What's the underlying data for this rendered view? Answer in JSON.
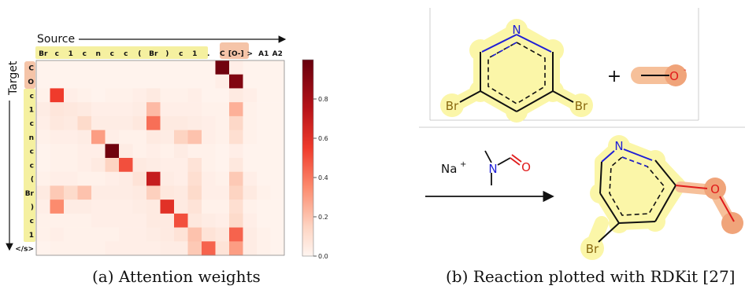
{
  "panel_a": {
    "source_label": "Source",
    "target_label": "Target",
    "source_tokens": [
      "Br",
      "c",
      "1",
      "c",
      "n",
      "c",
      "c",
      "(",
      "Br",
      ")",
      "c",
      "1",
      ".",
      "C",
      "[O-]",
      ">",
      "A1",
      "A2"
    ],
    "target_tokens": [
      "C",
      "O",
      "c",
      "1",
      "c",
      "n",
      "c",
      "c",
      "(",
      "Br",
      ")",
      "c",
      "1",
      "</s>"
    ],
    "caption": "(a) Attention weights",
    "colorbar_ticks": [
      "0.0",
      "0.2",
      "0.4",
      "0.6",
      "0.8"
    ],
    "colors": {
      "low": "#fff5f0",
      "high": "#67000d",
      "token_yellow": "#f5f0a0",
      "token_orange": "#f5c4a8"
    }
  },
  "chart_data": {
    "type": "heatmap",
    "xlabel": "Source",
    "ylabel": "Target",
    "x": [
      "Br",
      "c",
      "1",
      "c",
      "n",
      "c",
      "c",
      "(",
      "Br",
      ")",
      "c",
      "1",
      ".",
      "C",
      "[O-]",
      ">",
      "A1",
      "A2"
    ],
    "y": [
      "C",
      "O",
      "c",
      "1",
      "c",
      "n",
      "c",
      "c",
      "(",
      "Br",
      ")",
      "c",
      "1",
      "</s>"
    ],
    "zlim": [
      0,
      1
    ],
    "values": [
      [
        0.01,
        0.01,
        0.01,
        0.01,
        0.01,
        0.01,
        0.01,
        0.01,
        0.01,
        0.01,
        0.01,
        0.01,
        0.01,
        0.97,
        0.03,
        0.01,
        0.01,
        0.01
      ],
      [
        0.01,
        0.01,
        0.01,
        0.01,
        0.01,
        0.01,
        0.01,
        0.01,
        0.01,
        0.01,
        0.01,
        0.01,
        0.01,
        0.03,
        0.92,
        0.01,
        0.01,
        0.01
      ],
      [
        0.02,
        0.55,
        0.03,
        0.02,
        0.01,
        0.02,
        0.02,
        0.03,
        0.05,
        0.02,
        0.02,
        0.03,
        0.01,
        0.01,
        0.05,
        0.03,
        0.01,
        0.01
      ],
      [
        0.04,
        0.07,
        0.06,
        0.05,
        0.03,
        0.03,
        0.03,
        0.04,
        0.22,
        0.03,
        0.03,
        0.03,
        0.02,
        0.02,
        0.25,
        0.02,
        0.01,
        0.01
      ],
      [
        0.03,
        0.06,
        0.05,
        0.12,
        0.04,
        0.04,
        0.04,
        0.06,
        0.42,
        0.05,
        0.05,
        0.04,
        0.03,
        0.02,
        0.13,
        0.02,
        0.01,
        0.01
      ],
      [
        0.02,
        0.03,
        0.03,
        0.04,
        0.3,
        0.03,
        0.02,
        0.02,
        0.05,
        0.04,
        0.15,
        0.2,
        0.03,
        0.02,
        0.1,
        0.02,
        0.01,
        0.01
      ],
      [
        0.01,
        0.02,
        0.02,
        0.03,
        0.03,
        0.97,
        0.04,
        0.02,
        0.03,
        0.02,
        0.04,
        0.02,
        0.02,
        0.01,
        0.03,
        0.01,
        0.01,
        0.01
      ],
      [
        0.01,
        0.02,
        0.02,
        0.03,
        0.05,
        0.15,
        0.5,
        0.05,
        0.04,
        0.03,
        0.03,
        0.08,
        0.02,
        0.01,
        0.06,
        0.01,
        0.01,
        0.01
      ],
      [
        0.02,
        0.03,
        0.03,
        0.02,
        0.02,
        0.03,
        0.04,
        0.08,
        0.7,
        0.04,
        0.03,
        0.1,
        0.03,
        0.02,
        0.18,
        0.03,
        0.01,
        0.01
      ],
      [
        0.05,
        0.18,
        0.12,
        0.2,
        0.04,
        0.04,
        0.04,
        0.05,
        0.16,
        0.06,
        0.05,
        0.12,
        0.03,
        0.03,
        0.15,
        0.05,
        0.02,
        0.01
      ],
      [
        0.03,
        0.35,
        0.04,
        0.04,
        0.03,
        0.03,
        0.03,
        0.04,
        0.05,
        0.6,
        0.05,
        0.08,
        0.02,
        0.02,
        0.1,
        0.02,
        0.01,
        0.01
      ],
      [
        0.02,
        0.02,
        0.02,
        0.02,
        0.03,
        0.03,
        0.03,
        0.03,
        0.05,
        0.05,
        0.5,
        0.06,
        0.04,
        0.03,
        0.12,
        0.03,
        0.01,
        0.01
      ],
      [
        0.02,
        0.03,
        0.02,
        0.02,
        0.02,
        0.02,
        0.03,
        0.03,
        0.04,
        0.05,
        0.08,
        0.2,
        0.08,
        0.06,
        0.45,
        0.04,
        0.02,
        0.01
      ],
      [
        0.01,
        0.02,
        0.02,
        0.02,
        0.02,
        0.03,
        0.03,
        0.03,
        0.03,
        0.04,
        0.04,
        0.18,
        0.45,
        0.08,
        0.3,
        0.04,
        0.02,
        0.01
      ]
    ]
  },
  "panel_b": {
    "caption": "(b) Reaction plotted with RDKit [27]",
    "plus": "+",
    "atoms": {
      "N": "N",
      "Br": "Br",
      "O": "O",
      "O_minus": "O-",
      "Na_plus": "Na+"
    },
    "colors": {
      "carbon": "#111111",
      "nitrogen": "#1f1fd6",
      "oxygen": "#e01b1b",
      "highlight_yellow": "#fbf6a8",
      "highlight_orange": "#f6c09a",
      "highlight_orange_dark": "#f0a47a"
    }
  }
}
